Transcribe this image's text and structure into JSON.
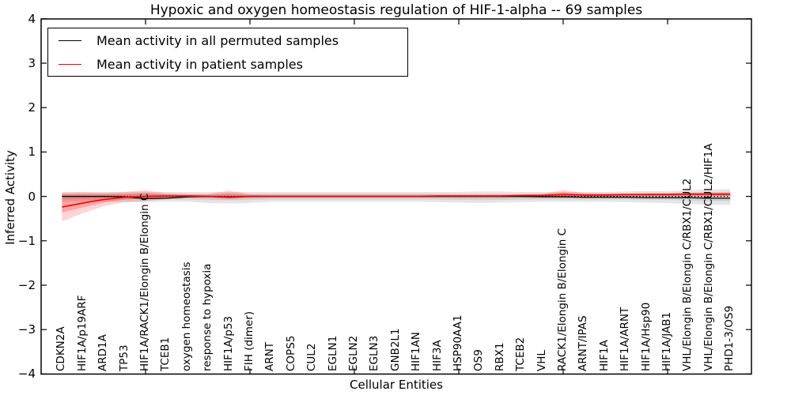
{
  "chart_data": {
    "type": "line",
    "title": "Hypoxic and oxygen homeostasis regulation of HIF-1-alpha -- 69 samples",
    "xlabel": "Cellular Entities",
    "ylabel": "Inferred Activity",
    "ylim": [
      -4,
      4
    ],
    "ytick_values": [
      4,
      3,
      2,
      1,
      0,
      -1,
      -2,
      -3,
      -4
    ],
    "ytick_labels": [
      "4",
      "3",
      "2",
      "1",
      "0",
      "−1",
      "−2",
      "−3",
      "−4"
    ],
    "xtick_positions": [
      5,
      10,
      15,
      20,
      25,
      30
    ],
    "grid": false,
    "legend_position": "upper left",
    "categories": [
      "CDKN2A",
      "HIF1A/p19ARF",
      "ARD1A",
      "TP53",
      "HIF1A/RACK1/Elongin B/Elongin C",
      "TCEB1",
      "oxygen homeostasis",
      "response to hypoxia",
      "HIF1A/p53",
      "FIH (dimer)",
      "ARNT",
      "COPS5",
      "CUL2",
      "EGLN1",
      "EGLN2",
      "EGLN3",
      "GNB2L1",
      "HIF1AN",
      "HIF3A",
      "HSP90AA1",
      "OS9",
      "RBX1",
      "TCEB2",
      "VHL",
      "RACK1/Elongin B/Elongin C",
      "ARNT/IPAS",
      "HIF1A",
      "HIF1A/ARNT",
      "HIF1A/Hsp90",
      "HIF1A/JAB1",
      "VHL/Elongin B/Elongin C/RBX1/CUL2",
      "VHL/Elongin B/Elongin C/RBX1/CUL2/HIF1A",
      "PHD1-3/OS9"
    ],
    "series": [
      {
        "name": "Mean activity in all permuted samples",
        "color": "#000000",
        "values": [
          0.0,
          0.0,
          0.0,
          -0.01,
          -0.05,
          -0.04,
          -0.01,
          0.0,
          -0.01,
          0.0,
          0.0,
          0.0,
          0.0,
          0.0,
          0.0,
          0.0,
          0.0,
          0.0,
          0.0,
          0.0,
          0.0,
          0.0,
          0.0,
          -0.01,
          -0.01,
          -0.02,
          -0.02,
          -0.02,
          -0.03,
          -0.03,
          -0.03,
          -0.04,
          -0.04
        ]
      },
      {
        "name": "Mean activity in patient samples",
        "color": "#ff0000",
        "values": [
          -0.24,
          -0.15,
          -0.07,
          -0.02,
          0.0,
          0.01,
          0.01,
          0.0,
          -0.02,
          0.0,
          0.0,
          0.0,
          0.0,
          0.0,
          0.0,
          0.0,
          0.0,
          0.0,
          0.01,
          0.01,
          0.01,
          0.01,
          0.02,
          0.02,
          0.04,
          0.03,
          0.03,
          0.04,
          0.04,
          0.04,
          0.05,
          0.05,
          0.05
        ]
      }
    ],
    "bands": [
      {
        "name": "permuted-outer",
        "color": "#999999",
        "opacity": 0.25,
        "high": [
          0.08,
          0.09,
          0.09,
          0.1,
          0.1,
          0.1,
          0.1,
          0.1,
          0.1,
          0.1,
          0.1,
          0.1,
          0.1,
          0.1,
          0.1,
          0.1,
          0.1,
          0.1,
          0.1,
          0.1,
          0.11,
          0.11,
          0.1,
          0.1,
          0.1,
          0.1,
          0.1,
          0.11,
          0.12,
          0.12,
          0.14,
          0.16,
          0.16
        ],
        "low": [
          -0.12,
          -0.12,
          -0.12,
          -0.13,
          -0.13,
          -0.12,
          -0.12,
          -0.15,
          -0.16,
          -0.15,
          -0.12,
          -0.12,
          -0.12,
          -0.12,
          -0.12,
          -0.12,
          -0.12,
          -0.12,
          -0.13,
          -0.14,
          -0.15,
          -0.14,
          -0.13,
          -0.12,
          -0.12,
          -0.12,
          -0.12,
          -0.13,
          -0.14,
          -0.15,
          -0.17,
          -0.19,
          -0.19
        ]
      },
      {
        "name": "permuted-inner",
        "color": "#999999",
        "opacity": 0.25,
        "high": [
          0.04,
          0.05,
          0.05,
          0.05,
          0.05,
          0.05,
          0.05,
          0.05,
          0.05,
          0.05,
          0.06,
          0.06,
          0.06,
          0.06,
          0.06,
          0.06,
          0.06,
          0.06,
          0.06,
          0.06,
          0.06,
          0.06,
          0.06,
          0.06,
          0.06,
          0.06,
          0.06,
          0.06,
          0.07,
          0.07,
          0.08,
          0.09,
          0.09
        ],
        "low": [
          -0.07,
          -0.07,
          -0.07,
          -0.07,
          -0.07,
          -0.07,
          -0.07,
          -0.08,
          -0.09,
          -0.08,
          -0.07,
          -0.07,
          -0.07,
          -0.07,
          -0.07,
          -0.07,
          -0.07,
          -0.07,
          -0.07,
          -0.08,
          -0.08,
          -0.08,
          -0.07,
          -0.07,
          -0.07,
          -0.07,
          -0.07,
          -0.07,
          -0.08,
          -0.08,
          -0.09,
          -0.11,
          -0.11
        ]
      },
      {
        "name": "patient-outer",
        "color": "#ff0000",
        "opacity": 0.17,
        "high": [
          0.1,
          0.1,
          0.09,
          0.1,
          0.14,
          0.07,
          0.05,
          0.05,
          0.13,
          0.05,
          0.04,
          0.04,
          0.04,
          0.04,
          0.04,
          0.04,
          0.04,
          0.04,
          0.04,
          0.04,
          0.04,
          0.04,
          0.04,
          0.06,
          0.14,
          0.08,
          0.07,
          0.07,
          0.08,
          0.08,
          0.09,
          0.09,
          0.1
        ],
        "low": [
          -0.56,
          -0.38,
          -0.22,
          -0.13,
          -0.11,
          -0.06,
          -0.04,
          -0.04,
          -0.07,
          -0.04,
          -0.03,
          -0.03,
          -0.03,
          -0.03,
          -0.03,
          -0.03,
          -0.03,
          -0.03,
          -0.03,
          -0.03,
          -0.03,
          -0.03,
          -0.03,
          -0.03,
          -0.04,
          -0.02,
          -0.01,
          -0.01,
          0.0,
          0.0,
          0.0,
          0.0,
          0.0
        ]
      },
      {
        "name": "patient-inner",
        "color": "#ff0000",
        "opacity": 0.22,
        "high": [
          0.05,
          0.05,
          0.05,
          0.06,
          0.08,
          0.04,
          0.03,
          0.03,
          0.07,
          0.03,
          0.02,
          0.02,
          0.02,
          0.02,
          0.02,
          0.02,
          0.02,
          0.02,
          0.02,
          0.02,
          0.02,
          0.02,
          0.03,
          0.04,
          0.09,
          0.05,
          0.05,
          0.05,
          0.06,
          0.06,
          0.07,
          0.07,
          0.07
        ],
        "low": [
          -0.36,
          -0.25,
          -0.14,
          -0.07,
          -0.05,
          -0.03,
          -0.02,
          -0.02,
          -0.04,
          -0.02,
          -0.01,
          -0.01,
          -0.01,
          -0.01,
          -0.01,
          -0.01,
          -0.01,
          -0.01,
          -0.01,
          -0.01,
          -0.01,
          -0.01,
          -0.01,
          -0.01,
          -0.02,
          -0.01,
          0.0,
          0.0,
          0.01,
          0.01,
          0.02,
          0.02,
          0.02
        ]
      }
    ],
    "zero_line": {
      "style": "dashed",
      "color": "#000000",
      "y": 0
    }
  },
  "legend": {
    "items": [
      {
        "label": "Mean activity in all permuted samples",
        "color": "#000000"
      },
      {
        "label": "Mean activity in patient samples",
        "color": "#ff0000"
      }
    ]
  },
  "colors": {
    "frame": "#000000",
    "background": "#ffffff",
    "permuted_line": "#000000",
    "patient_line": "#ff0000"
  }
}
